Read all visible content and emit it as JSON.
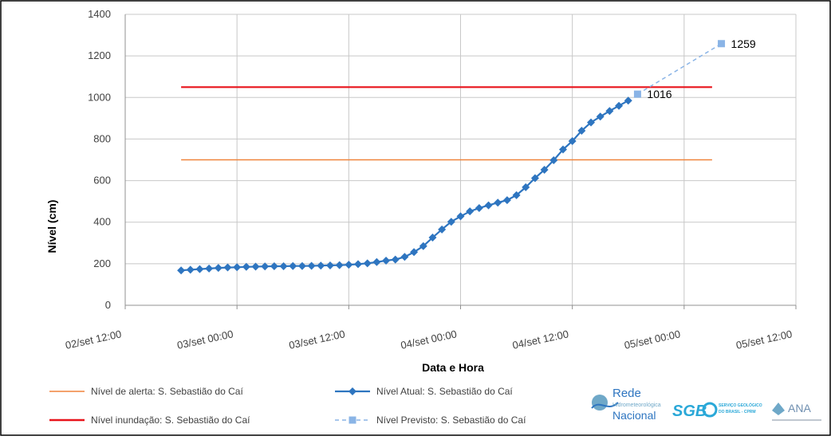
{
  "chart_data": {
    "type": "line",
    "title": "",
    "xlabel": "Data e Hora",
    "ylabel": "Nível (cm)",
    "ylim": [
      0,
      1400
    ],
    "yticks": [
      "0",
      "200",
      "400",
      "600",
      "800",
      "1000",
      "1200",
      "1400"
    ],
    "xlim_hours": [
      0,
      72
    ],
    "xticks": [
      {
        "label": "02/set 12:00",
        "hours": 0
      },
      {
        "label": "03/set 00:00",
        "hours": 12
      },
      {
        "label": "03/set 12:00",
        "hours": 24
      },
      {
        "label": "04/set 00:00",
        "hours": 36
      },
      {
        "label": "04/set 12:00",
        "hours": 48
      },
      {
        "label": "05/set 00:00",
        "hours": 60
      },
      {
        "label": "05/set 12:00",
        "hours": 72
      }
    ],
    "grid": true,
    "legend_position": "bottom",
    "series": [
      {
        "key": "alerta",
        "name": "Nível de alerta: S. Sebastião do Caí",
        "color": "#f0843c",
        "style": "line",
        "points": [
          [
            6,
            700
          ],
          [
            63,
            700
          ]
        ]
      },
      {
        "key": "inundacao",
        "name": "Nível inundação: S. Sebastião do Caí",
        "color": "#e8141b",
        "style": "thick-line",
        "points": [
          [
            6,
            1050
          ],
          [
            63,
            1050
          ]
        ]
      },
      {
        "key": "atual",
        "name": "Nível Atual: S. Sebastião do Caí",
        "color": "#2e75c0",
        "style": "line-diamond",
        "points": [
          [
            6,
            168
          ],
          [
            7,
            171
          ],
          [
            8,
            174
          ],
          [
            9,
            177
          ],
          [
            10,
            180
          ],
          [
            11,
            182
          ],
          [
            12,
            183
          ],
          [
            13,
            185
          ],
          [
            14,
            186
          ],
          [
            15,
            187
          ],
          [
            16,
            188
          ],
          [
            17,
            188
          ],
          [
            18,
            189
          ],
          [
            19,
            189
          ],
          [
            20,
            190
          ],
          [
            21,
            191
          ],
          [
            22,
            192
          ],
          [
            23,
            193
          ],
          [
            24,
            195
          ],
          [
            25,
            198
          ],
          [
            26,
            202
          ],
          [
            27,
            208
          ],
          [
            28,
            215
          ],
          [
            29,
            220
          ],
          [
            30,
            233
          ],
          [
            31,
            256
          ],
          [
            32,
            285
          ],
          [
            33,
            326
          ],
          [
            34,
            365
          ],
          [
            35,
            402
          ],
          [
            36,
            428
          ],
          [
            37,
            452
          ],
          [
            38,
            468
          ],
          [
            39,
            481
          ],
          [
            40,
            494
          ],
          [
            41,
            506
          ],
          [
            42,
            530
          ],
          [
            43,
            568
          ],
          [
            44,
            612
          ],
          [
            45,
            652
          ],
          [
            46,
            698
          ],
          [
            47,
            750
          ],
          [
            48,
            790
          ],
          [
            49,
            840
          ],
          [
            50,
            880
          ],
          [
            51,
            908
          ],
          [
            52,
            935
          ],
          [
            53,
            960
          ],
          [
            54,
            985
          ]
        ]
      },
      {
        "key": "previsto",
        "name": "Nível Previsto: S. Sebastião do Caí",
        "color": "#8ab4e6",
        "style": "dashed-square",
        "points": [
          [
            55,
            1016
          ],
          [
            64,
            1259
          ]
        ]
      }
    ],
    "annotations": [
      {
        "text": "1016",
        "x": 55,
        "y": 1016
      },
      {
        "text": "1259",
        "x": 64,
        "y": 1259
      }
    ]
  },
  "logos": {
    "rede_title": "Rede",
    "rede_subtitle": "Hidrometeorológica",
    "rede_bottom": "Nacional",
    "sgb": "SGB",
    "sgb_small_1": "SERVIÇO GEOLÓGICO",
    "sgb_small_2": "DO BRASIL - CPRM",
    "ana": "ANA"
  }
}
